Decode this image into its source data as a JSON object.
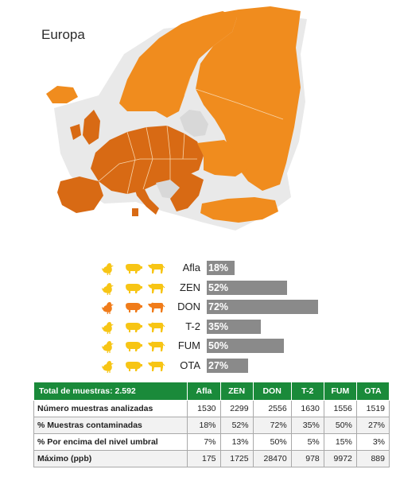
{
  "region": "Europa",
  "colors": {
    "map_orange": "#f08c1e",
    "map_dark": "#d86a14",
    "map_grey": "#d8d8d8",
    "bar": "#8a8a8a",
    "header_green": "#1a8a3a",
    "icon_yellow": "#f7c515",
    "icon_orange": "#f07c1a"
  },
  "chart_data": {
    "type": "bar",
    "orientation": "horizontal",
    "categories": [
      "Afla",
      "ZEN",
      "DON",
      "T-2",
      "FUM",
      "OTA"
    ],
    "values": [
      18,
      52,
      72,
      35,
      50,
      27
    ],
    "value_labels": [
      "18%",
      "52%",
      "72%",
      "35%",
      "50%",
      "27%"
    ],
    "xlim": [
      0,
      100
    ]
  },
  "icon_rows": [
    {
      "mycotoxin": "Afla",
      "icons": [
        "chicken-icon",
        "pig-icon",
        "cow-icon"
      ],
      "highlight": false
    },
    {
      "mycotoxin": "ZEN",
      "icons": [
        "chicken-icon",
        "pig-icon",
        "cow-icon"
      ],
      "highlight": false
    },
    {
      "mycotoxin": "DON",
      "icons": [
        "chicken-icon",
        "pig-icon",
        "cow-icon"
      ],
      "highlight": true
    },
    {
      "mycotoxin": "T-2",
      "icons": [
        "chicken-icon",
        "pig-icon",
        "cow-icon"
      ],
      "highlight": false
    },
    {
      "mycotoxin": "FUM",
      "icons": [
        "chicken-icon",
        "pig-icon",
        "cow-icon"
      ],
      "highlight": false
    },
    {
      "mycotoxin": "OTA",
      "icons": [
        "chicken-icon",
        "pig-icon",
        "cow-icon"
      ],
      "highlight": false
    }
  ],
  "table": {
    "header_title": "Total de muestras: 2.592",
    "columns": [
      "Afla",
      "ZEN",
      "DON",
      "T-2",
      "FUM",
      "OTA"
    ],
    "rows": [
      {
        "label": "Número muestras analizadas",
        "cells": [
          "1530",
          "2299",
          "2556",
          "1630",
          "1556",
          "1519"
        ]
      },
      {
        "label": "% Muestras contaminadas",
        "cells": [
          "18%",
          "52%",
          "72%",
          "35%",
          "50%",
          "27%"
        ]
      },
      {
        "label": "% Por encima del nivel umbral",
        "cells": [
          "7%",
          "13%",
          "50%",
          "5%",
          "15%",
          "3%"
        ]
      },
      {
        "label": "Máximo (ppb)",
        "cells": [
          "175",
          "1725",
          "28470",
          "978",
          "9972",
          "889"
        ]
      }
    ]
  }
}
